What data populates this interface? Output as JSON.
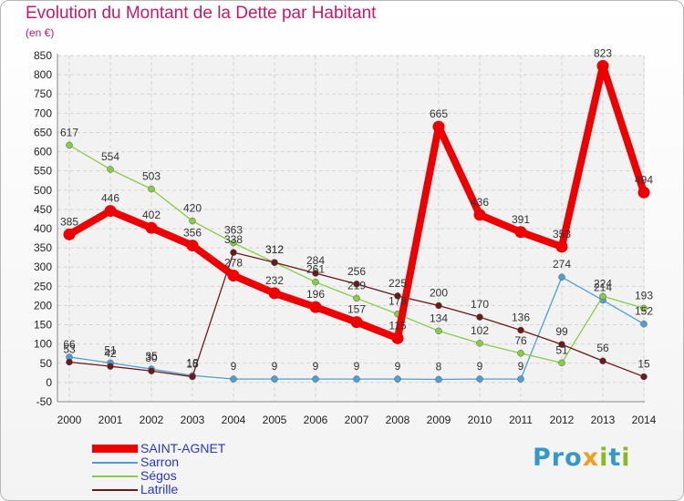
{
  "chart_data": {
    "type": "line",
    "title": "Evolution du Montant de la Dette par Habitant",
    "subtitle": "(en €)",
    "x": [
      "2000",
      "2001",
      "2002",
      "2003",
      "2004",
      "2005",
      "2006",
      "2007",
      "2008",
      "2009",
      "2010",
      "2011",
      "2012",
      "2013",
      "2014"
    ],
    "ylim": [
      -50,
      850
    ],
    "yticks": [
      -50,
      0,
      50,
      100,
      150,
      200,
      250,
      300,
      350,
      400,
      450,
      500,
      550,
      600,
      650,
      700,
      750,
      800,
      850
    ],
    "grid": true,
    "legend_position": "bottom-left",
    "series": [
      {
        "name": "SAINT-AGNET",
        "color": "#ee0000",
        "values": [
          385,
          446,
          402,
          356,
          278,
          232,
          196,
          157,
          115,
          665,
          436,
          391,
          353,
          823,
          494
        ]
      },
      {
        "name": "Sarron",
        "color": "#4d9fd6",
        "values": [
          66,
          51,
          35,
          18,
          9,
          9,
          9,
          9,
          9,
          8,
          9,
          9,
          274,
          214,
          152
        ]
      },
      {
        "name": "Ségos",
        "color": "#88cc44",
        "values": [
          617,
          554,
          503,
          420,
          363,
          312,
          261,
          219,
          178,
          134,
          102,
          76,
          51,
          224,
          193
        ]
      },
      {
        "name": "Latrille",
        "color": "#6b1a1a",
        "values": [
          53,
          42,
          30,
          15,
          338,
          312,
          284,
          256,
          225,
          200,
          170,
          136,
          99,
          56,
          15
        ]
      }
    ]
  },
  "logo_text": {
    "p1": "Pro",
    "x": "x",
    "p2": "i",
    "p3": "t",
    "p4": "i"
  }
}
